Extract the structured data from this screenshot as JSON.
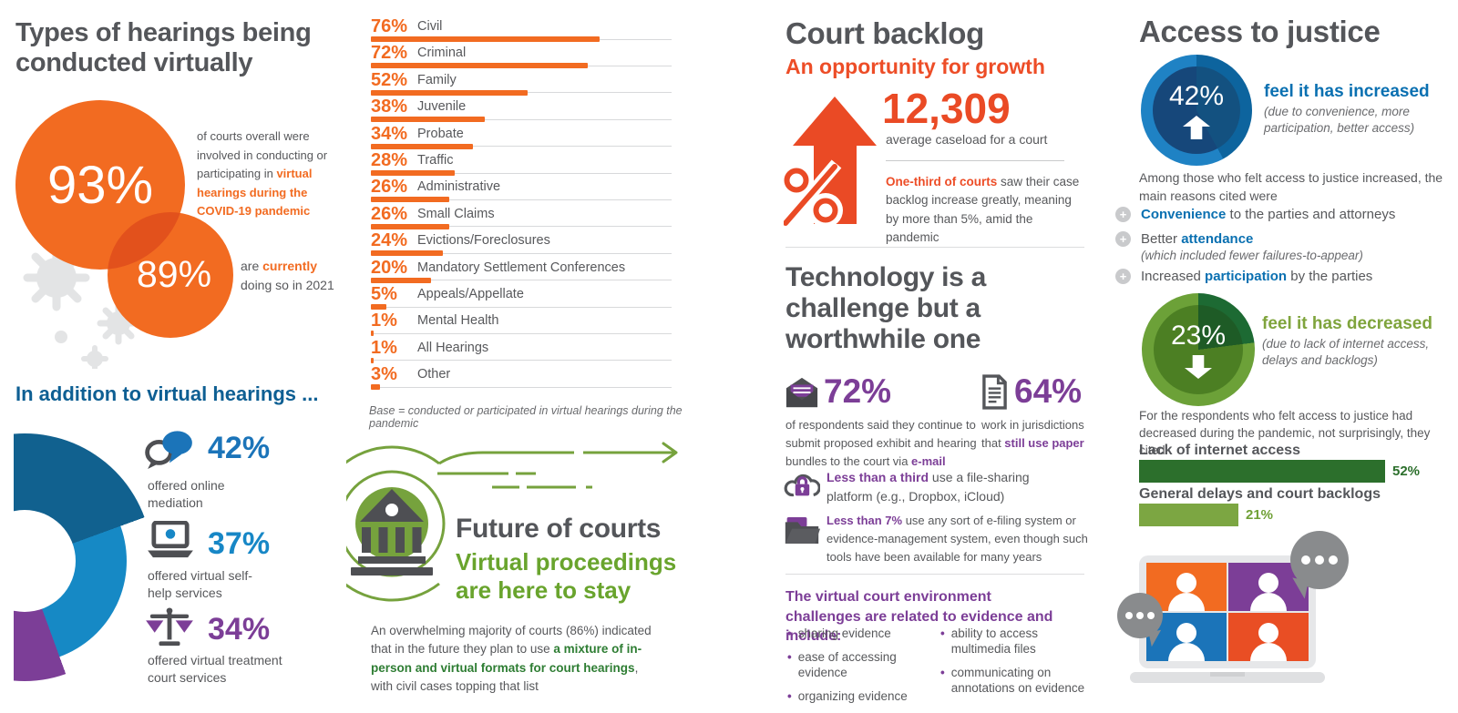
{
  "colors": {
    "orange": "#F26B21",
    "orange_overlap": "#E2511C",
    "red_orange": "#ED4D27",
    "arrow_red": "#EA4A25",
    "heading_gray": "#54565A",
    "body_gray": "#57585B",
    "blue": "#1B74B9",
    "mid_blue": "#1689C5",
    "dark_blue_heading": "#0E5F93",
    "donut_dark_blue": "#11618F",
    "purple": "#7C3E97",
    "green": "#76A23D",
    "green_accent": "#69A42D",
    "dark_green": "#2C6F2C",
    "light_green_bar": "#7CA642",
    "light_gray": "#D8D9DB",
    "bubble_gray": "#898B8D"
  },
  "virtual_hearings": {
    "title": "Types of hearings being conducted virtually",
    "overall_value": "93%",
    "overall_desc_plain": "of courts overall were involved in conducting or participating in ",
    "overall_desc_accent": "virtual hearings during the COVID-19 pandemic",
    "current_value": "89%",
    "current_pre": "are ",
    "current_accent": "currently",
    "current_post": " doing so in 2021",
    "addition_title": "In addition to virtual hearings ...",
    "addition_stats": [
      {
        "value": "42%",
        "label": "offered online mediation",
        "icon": "chat-bubbles-icon"
      },
      {
        "value": "37%",
        "label": "offered virtual self-help services",
        "icon": "laptop-icon"
      },
      {
        "value": "34%",
        "label": "offered virtual treatment court services",
        "icon": "scales-of-justice-icon"
      }
    ]
  },
  "future": {
    "title": "Future of courts",
    "subtitle": "Virtual proceedings are here to stay",
    "para_p1": "An overwhelming majority of courts (86%) indicated that in the future they plan to use ",
    "para_accent": "a mixture of in-person and virtual formats for court hearings",
    "para_p2": ", with civil cases topping that list",
    "icon": "courthouse-icon"
  },
  "backlog": {
    "title": "Court backlog",
    "subtitle": "An opportunity for growth",
    "caseload_value": "12,309",
    "caseload_label": "average caseload for a court",
    "note_accent": "One-third of courts",
    "note_rest": " saw their case backlog increase greatly, meaning by more than 5%, amid the pandemic",
    "icon": "growth-arrow-percent-icon"
  },
  "technology": {
    "title": "Technology is a challenge but a worthwhile one",
    "email_value": "72%",
    "email_icon": "email-envelope-icon",
    "email_p1": "of respondents said they continue to submit proposed exhibit and hearing bundles to the court via ",
    "email_accent": "e-mail",
    "paper_value": "64%",
    "paper_icon": "paper-document-icon",
    "paper_p1": "work in jurisdictions that ",
    "paper_accent": "still use paper",
    "fact1_icon": "cloud-lock-icon",
    "fact1_accent": "Less than a third",
    "fact1_rest": " use a file-sharing platform (e.g., Dropbox, iCloud)",
    "fact2_icon": "folder-icon",
    "fact2_accent": "Less than 7%",
    "fact2_rest": " use any sort of e-filing system or evidence-management system, even though such tools have been available for many years",
    "challenges_heading": "The virtual court environment challenges are related to evidence and include:",
    "challenges_left": [
      "sharing evidence",
      "ease of accessing evidence",
      "organizing evidence"
    ],
    "challenges_right": [
      "ability to access multimedia files",
      "communicating on annotations on evidence"
    ]
  },
  "access": {
    "title": "Access to justice",
    "increased_value": "42%",
    "increased_label": "feel it has increased",
    "increased_detail": "(due to convenience, more participation, better access)",
    "reasons_intro": "Among those who felt access to justice increased, the main reasons cited were",
    "reasons": [
      {
        "pre": "",
        "accent": "Convenience",
        "post": " to the parties and attorneys",
        "sub": ""
      },
      {
        "pre": "Better ",
        "accent": "attendance",
        "post": "",
        "sub": "(which included fewer failures-to-appear)"
      },
      {
        "pre": "Increased ",
        "accent": "participation",
        "post": " by the parties",
        "sub": ""
      }
    ],
    "decreased_value": "23%",
    "decreased_label": "feel it has decreased",
    "decreased_detail": "(due to lack of internet access, delays and backlogs)",
    "decreased_intro": "For the respondents who felt access to justice had decreased during the pandemic, not surprisingly, they cited"
  },
  "chart_data": [
    {
      "type": "bar",
      "orientation": "horizontal",
      "title": "Types of hearings being conducted virtually",
      "categories": [
        "Civil",
        "Criminal",
        "Family",
        "Juvenile",
        "Probate",
        "Traffic",
        "Administrative",
        "Small Claims",
        "Evictions/Foreclosures",
        "Mandatory Settlement Conferences",
        "Appeals/Appellate",
        "Mental Health",
        "All Hearings",
        "Other"
      ],
      "values": [
        76,
        72,
        52,
        38,
        34,
        28,
        26,
        26,
        24,
        20,
        5,
        1,
        1,
        3
      ],
      "unit": "%",
      "xlim": [
        0,
        100
      ],
      "bar_color": "#F26B21",
      "note": "Base = conducted or participated in virtual hearings during the pandemic"
    },
    {
      "type": "donut",
      "title": "In addition to virtual hearings ...",
      "segments": [
        {
          "label": "offered online mediation",
          "value": 42,
          "color": "#11618F"
        },
        {
          "label": "offered virtual self-help services",
          "value": 37,
          "color": "#1689C5"
        },
        {
          "label": "offered virtual treatment court services",
          "value": 34,
          "color": "#7C3E97"
        }
      ]
    },
    {
      "type": "donut",
      "title": "Access to justice — increased",
      "segments": [
        {
          "label": "feel it has increased",
          "value": 42,
          "color": "#0D649E"
        }
      ]
    },
    {
      "type": "donut",
      "title": "Access to justice — decreased",
      "segments": [
        {
          "label": "feel it has decreased",
          "value": 23,
          "color": "#1D6A33"
        }
      ]
    },
    {
      "type": "bar",
      "orientation": "horizontal",
      "title": "Reasons access to justice decreased",
      "categories": [
        "Lack of internet access",
        "General delays and court backlogs"
      ],
      "values": [
        52,
        21
      ],
      "unit": "%",
      "xlim": [
        0,
        60
      ],
      "bar_colors": [
        "#2C6F2C",
        "#7CA642"
      ]
    }
  ]
}
